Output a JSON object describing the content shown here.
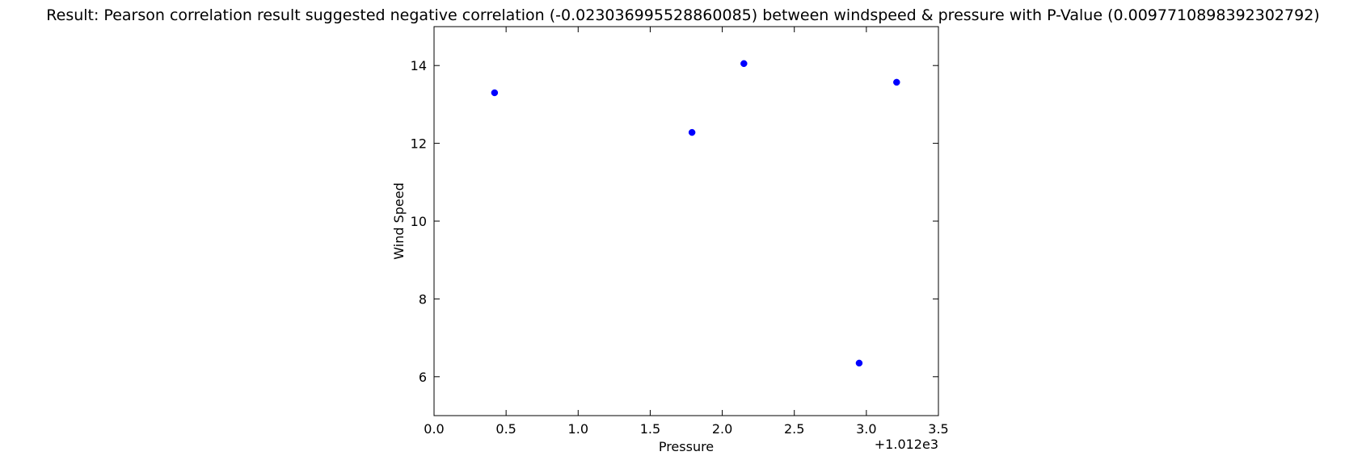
{
  "chart_data": {
    "type": "scatter",
    "title": "Result: Pearson correlation result suggested negative correlation (-0.023036995528860085) between windspeed & pressure with P-Value (0.009771089839230279​2)",
    "xlabel": "Pressure",
    "ylabel": "Wind Speed",
    "x_offset_label": "+1.012e3",
    "xlim": [
      0.0,
      3.5
    ],
    "ylim": [
      5,
      15
    ],
    "xticks": [
      "0.0",
      "0.5",
      "1.0",
      "1.5",
      "2.0",
      "2.5",
      "3.0",
      "3.5"
    ],
    "yticks": [
      "6",
      "8",
      "10",
      "12",
      "14"
    ],
    "grid": false,
    "marker_color": "#0000ff",
    "points": [
      {
        "x": 0.42,
        "y": 13.3
      },
      {
        "x": 1.79,
        "y": 12.28
      },
      {
        "x": 2.15,
        "y": 14.05
      },
      {
        "x": 2.95,
        "y": 6.35
      },
      {
        "x": 3.21,
        "y": 13.57
      }
    ]
  }
}
